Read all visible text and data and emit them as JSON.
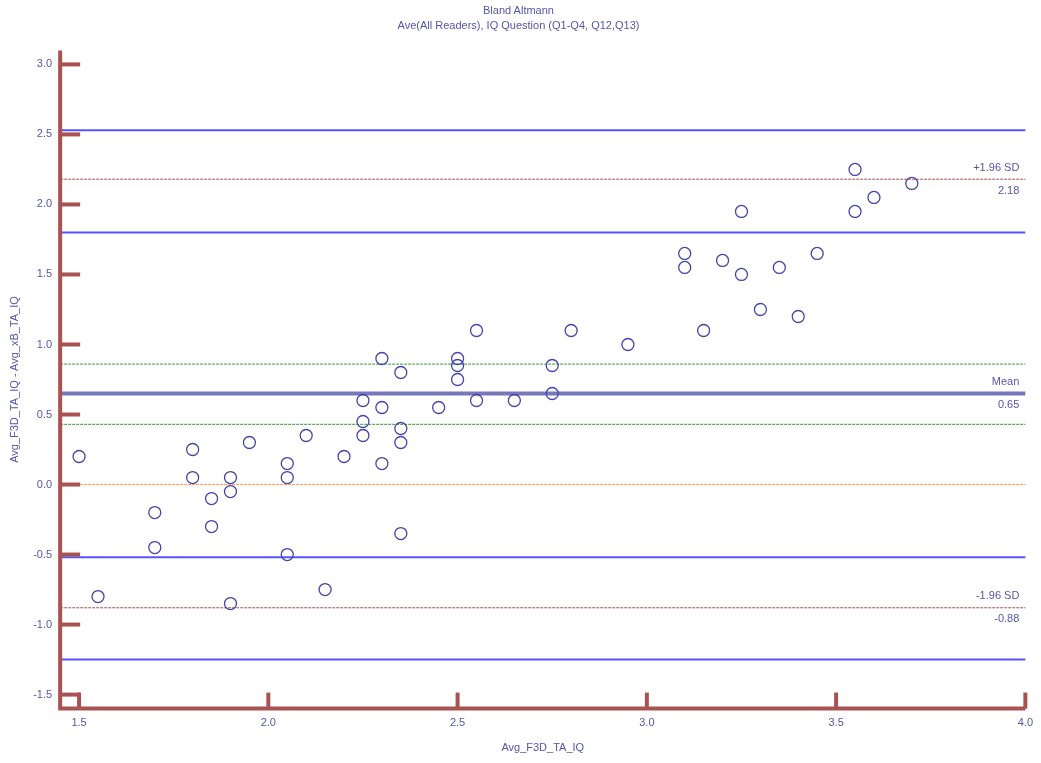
{
  "chart_data": {
    "type": "scatter",
    "title": "Bland Altmann",
    "subtitle": "Ave(All Readers), IQ Question (Q1-Q4, Q12,Q13)",
    "xlabel": "Avg_F3D_TA_IQ",
    "ylabel": "Avg_F3D_TA_IQ - Avg_xB_TA_IQ",
    "x": [
      1.5,
      1.55,
      1.7,
      1.7,
      1.8,
      1.8,
      1.85,
      1.85,
      1.9,
      1.9,
      1.9,
      1.95,
      2.05,
      2.05,
      2.05,
      2.1,
      2.15,
      2.2,
      2.25,
      2.25,
      2.25,
      2.3,
      2.3,
      2.3,
      2.35,
      2.35,
      2.35,
      2.35,
      2.45,
      2.5,
      2.5,
      2.5,
      2.55,
      2.55,
      2.65,
      2.75,
      2.75,
      2.8,
      2.95,
      3.1,
      3.1,
      3.15,
      3.2,
      3.25,
      3.25,
      3.3,
      3.35,
      3.4,
      3.45,
      3.55,
      3.55,
      3.6,
      3.7
    ],
    "series": [
      {
        "color": "#4444aa",
        "values": [
          0.2,
          -0.8,
          -0.2,
          -0.45,
          0.25,
          0.05,
          -0.1,
          -0.3,
          0.05,
          -0.05,
          -0.85,
          0.3,
          0.15,
          0.05,
          -0.5,
          0.35,
          -0.75,
          0.2,
          0.6,
          0.45,
          0.35,
          0.9,
          0.55,
          0.15,
          0.8,
          0.4,
          0.3,
          -0.35,
          0.55,
          0.9,
          0.85,
          0.75,
          1.1,
          0.6,
          0.6,
          0.85,
          0.65,
          1.1,
          1.0,
          1.65,
          1.55,
          1.1,
          1.6,
          1.95,
          1.5,
          1.25,
          1.55,
          1.2,
          1.65,
          2.25,
          1.95,
          2.05,
          2.15
        ]
      }
    ],
    "marker": "circle",
    "grid": false,
    "legend": false,
    "xlim": [
      1.45,
      4.0
    ],
    "ylim": [
      -1.6,
      3.1
    ],
    "xticks": [
      {
        "value": 1.5,
        "label": "1.5"
      },
      {
        "value": 2.0,
        "label": "2.0"
      },
      {
        "value": 2.5,
        "label": "2.5"
      },
      {
        "value": 3.0,
        "label": "3.0"
      },
      {
        "value": 3.5,
        "label": "3.5"
      },
      {
        "value": 4.0,
        "label": "4.0"
      }
    ],
    "yticks": [
      {
        "value": -1.5,
        "label": "-1.5"
      },
      {
        "value": -1.0,
        "label": "-1.0"
      },
      {
        "value": -0.5,
        "label": "-0.5"
      },
      {
        "value": 0,
        "label": "0.0"
      },
      {
        "value": 0.5,
        "label": "0.5"
      },
      {
        "value": 1.0,
        "label": "1.0"
      },
      {
        "value": 1.5,
        "label": "1.5"
      },
      {
        "value": 2.0,
        "label": "2.0"
      },
      {
        "value": 2.5,
        "label": "2.5"
      },
      {
        "value": 3.0,
        "label": "3.0"
      }
    ],
    "ref_lines": [
      {
        "axis": "y",
        "value": 2.53,
        "color": "#5555ff",
        "line_style": "solid"
      },
      {
        "axis": "y",
        "value": 2.18,
        "label": "+1.96 SD",
        "color": "#aa5555",
        "line_style": "dashed"
      },
      {
        "axis": "y",
        "value": 1.8,
        "color": "#5555ff",
        "line_style": "solid"
      },
      {
        "axis": "y",
        "value": 0.86,
        "color": "#339933",
        "line_style": "dashed"
      },
      {
        "axis": "y",
        "value": 0.65,
        "label": "Mean",
        "color": "#7777bb",
        "line_style": "solid"
      },
      {
        "axis": "y",
        "value": 0.43,
        "color": "#339933",
        "line_style": "dashed"
      },
      {
        "axis": "y",
        "value": 0,
        "color": "#ff9955",
        "line_style": "dashed"
      },
      {
        "axis": "y",
        "value": -0.52,
        "color": "#5555ff",
        "line_style": "solid"
      },
      {
        "axis": "y",
        "value": -0.88,
        "label": "-1.96 SD",
        "color": "#aa5555",
        "line_style": "dashed"
      },
      {
        "axis": "y",
        "value": -1.25,
        "color": "#5555ff",
        "line_style": "solid"
      }
    ],
    "annotations": [
      {
        "text": "2.18",
        "y": 2.18
      },
      {
        "text": "0.65",
        "y": 0.65
      },
      {
        "text": "-0.88",
        "y": -0.88
      }
    ]
  }
}
